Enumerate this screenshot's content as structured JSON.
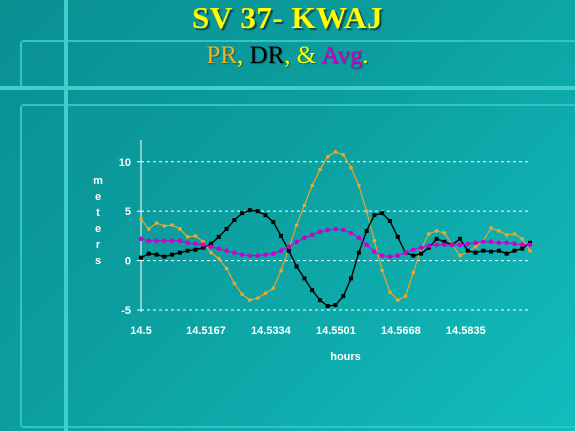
{
  "slide": {
    "title": "SV 37- KWAJ",
    "subtitle": {
      "parts": [
        {
          "text": "PR",
          "color": "#f5b21b"
        },
        {
          "text": ", ",
          "color": "#ffff00"
        },
        {
          "text": "DR",
          "color": "#000000"
        },
        {
          "text": ", & ",
          "color": "#ffff00"
        },
        {
          "text": "Avg",
          "color": "#cc00cc"
        },
        {
          "text": ".",
          "color": "#ffff00"
        }
      ]
    }
  },
  "chart_data": {
    "type": "line",
    "title": "",
    "xlabel": "hours",
    "ylabel": "meters",
    "xlim": [
      14.5,
      14.6
    ],
    "ylim": [
      -5,
      12
    ],
    "x_ticks": [
      "14.5",
      "14.5167",
      "14.5334",
      "14.5501",
      "14.5668",
      "14.5835"
    ],
    "x_tick_values": [
      14.5,
      14.5167,
      14.5334,
      14.5501,
      14.5668,
      14.5835
    ],
    "y_ticks": [
      10,
      5,
      0,
      -5
    ],
    "grid": "horizontal dashed",
    "legend": "none",
    "series": [
      {
        "color": "#f5a623",
        "marker": "circle",
        "x": [
          14.5,
          14.502,
          14.504,
          14.506,
          14.508,
          14.51,
          14.512,
          14.514,
          14.516,
          14.518,
          14.52,
          14.522,
          14.524,
          14.526,
          14.528,
          14.53,
          14.532,
          14.534,
          14.536,
          14.538,
          14.54,
          14.542,
          14.544,
          14.546,
          14.548,
          14.55,
          14.552,
          14.554,
          14.556,
          14.558,
          14.56,
          14.562,
          14.564,
          14.566,
          14.568,
          14.57,
          14.572,
          14.574,
          14.576,
          14.578,
          14.58,
          14.582,
          14.584,
          14.586,
          14.588,
          14.59,
          14.592,
          14.594,
          14.596,
          14.598,
          14.6
        ],
        "values": [
          4.2,
          3.2,
          3.8,
          3.5,
          3.6,
          3.2,
          2.4,
          2.5,
          1.9,
          0.8,
          0.2,
          -0.8,
          -2.3,
          -3.4,
          -4.0,
          -3.8,
          -3.3,
          -2.8,
          -1.0,
          1.2,
          3.6,
          5.6,
          7.6,
          9.2,
          10.5,
          11.0,
          10.7,
          9.4,
          7.6,
          5.0,
          2.0,
          -1.0,
          -3.2,
          -4.0,
          -3.6,
          -1.2,
          1.2,
          2.7,
          3.0,
          2.8,
          1.6,
          0.5,
          0.9,
          1.4,
          2.0,
          3.3,
          3.0,
          2.6,
          2.7,
          2.2,
          1.0
        ]
      },
      {
        "color": "#000000",
        "marker": "square",
        "x": [
          14.5,
          14.502,
          14.504,
          14.506,
          14.508,
          14.51,
          14.512,
          14.514,
          14.516,
          14.518,
          14.52,
          14.522,
          14.524,
          14.526,
          14.528,
          14.53,
          14.532,
          14.534,
          14.536,
          14.538,
          14.54,
          14.542,
          14.544,
          14.546,
          14.548,
          14.55,
          14.552,
          14.554,
          14.556,
          14.558,
          14.56,
          14.562,
          14.564,
          14.566,
          14.568,
          14.57,
          14.572,
          14.574,
          14.576,
          14.578,
          14.58,
          14.582,
          14.584,
          14.586,
          14.588,
          14.59,
          14.592,
          14.594,
          14.596,
          14.598,
          14.6
        ],
        "values": [
          0.3,
          0.7,
          0.6,
          0.4,
          0.6,
          0.8,
          1.0,
          1.1,
          1.3,
          1.7,
          2.4,
          3.2,
          4.1,
          4.8,
          5.1,
          5.0,
          4.6,
          3.9,
          2.5,
          1.0,
          -0.6,
          -1.8,
          -3.0,
          -4.0,
          -4.6,
          -4.5,
          -3.6,
          -1.8,
          0.8,
          3.0,
          4.6,
          4.8,
          4.0,
          2.4,
          0.8,
          0.5,
          0.7,
          1.3,
          2.2,
          1.9,
          1.6,
          2.2,
          1.0,
          0.8,
          1.0,
          0.9,
          1.0,
          0.7,
          1.0,
          1.2,
          1.8
        ]
      },
      {
        "color": "#cc00cc",
        "marker": "circle",
        "x": [
          14.5,
          14.502,
          14.504,
          14.506,
          14.508,
          14.51,
          14.512,
          14.514,
          14.516,
          14.518,
          14.52,
          14.522,
          14.524,
          14.526,
          14.528,
          14.53,
          14.532,
          14.534,
          14.536,
          14.538,
          14.54,
          14.542,
          14.544,
          14.546,
          14.548,
          14.55,
          14.552,
          14.554,
          14.556,
          14.558,
          14.56,
          14.562,
          14.564,
          14.566,
          14.568,
          14.57,
          14.572,
          14.574,
          14.576,
          14.578,
          14.58,
          14.582,
          14.584,
          14.586,
          14.588,
          14.59,
          14.592,
          14.594,
          14.596,
          14.598,
          14.6
        ],
        "values": [
          2.2,
          2.0,
          2.0,
          2.0,
          2.0,
          2.0,
          1.8,
          1.7,
          1.6,
          1.4,
          1.2,
          1.0,
          0.8,
          0.6,
          0.5,
          0.5,
          0.6,
          0.7,
          1.0,
          1.4,
          1.9,
          2.3,
          2.6,
          2.9,
          3.1,
          3.2,
          3.1,
          2.8,
          2.3,
          1.6,
          0.9,
          0.5,
          0.4,
          0.5,
          0.8,
          1.1,
          1.3,
          1.5,
          1.6,
          1.6,
          1.6,
          1.6,
          1.7,
          1.8,
          1.9,
          1.9,
          1.8,
          1.8,
          1.7,
          1.6,
          1.6
        ]
      }
    ]
  }
}
